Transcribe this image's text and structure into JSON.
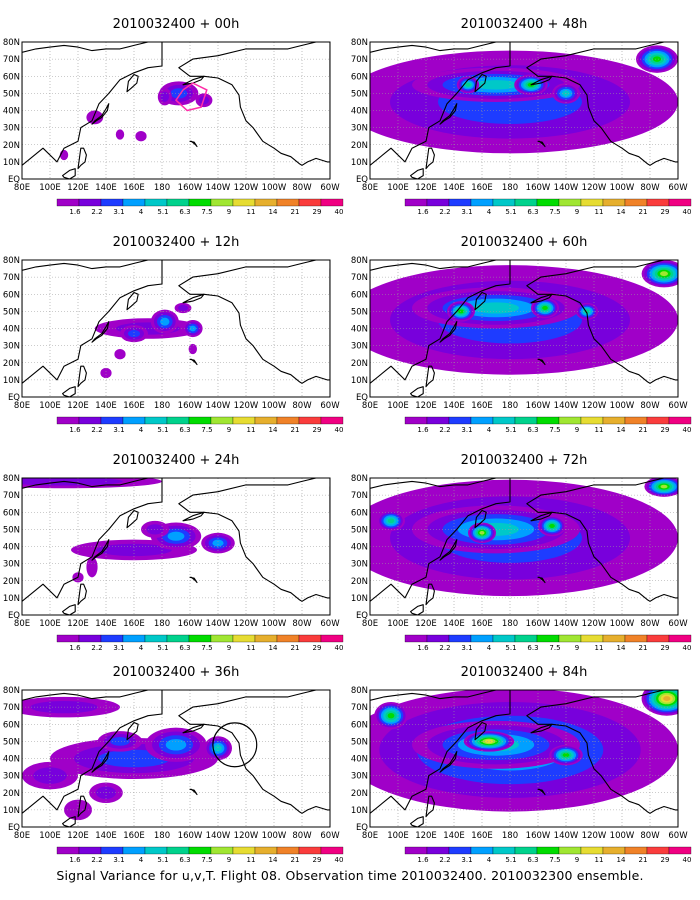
{
  "figure": {
    "footer": "Signal Variance for u,v,T. Flight 08. Observation time 2010032400. 2010032300 ensemble."
  },
  "x_axis_labels": [
    "80E",
    "100E",
    "120E",
    "140E",
    "160E",
    "180",
    "160W",
    "140W",
    "120W",
    "100W",
    "80W",
    "60W"
  ],
  "y_axis_labels": [
    "EQ",
    "10N",
    "20N",
    "30N",
    "40N",
    "50N",
    "60N",
    "70N",
    "80N"
  ],
  "colorbar": {
    "labels": [
      "1.6",
      "2.2",
      "3.1",
      "4",
      "5.1",
      "6.3",
      "7.5",
      "9",
      "11",
      "14",
      "21",
      "29",
      "40"
    ],
    "colors": [
      "#a000c8",
      "#7800dc",
      "#1e3cff",
      "#00a0ff",
      "#00c8c8",
      "#00d28c",
      "#00dc00",
      "#a0e632",
      "#e6dc32",
      "#e6af2d",
      "#f08228",
      "#fa3c3c",
      "#f00082"
    ]
  },
  "map_colors": {
    "land_outline": "#000000",
    "grid": "#9a9a9a",
    "frame": "#000000"
  },
  "panels": [
    {
      "id": "p00",
      "title": "2010032400 + 00h",
      "col": 0,
      "row": 0,
      "marker": {
        "type": "polygon",
        "color": "#ff2ea8",
        "lon": [
          -165,
          -170,
          -162,
          -152,
          -148,
          -158,
          -165
        ],
        "lat": [
          52,
          46,
          40,
          42,
          52,
          56,
          52
        ]
      },
      "blobs": [
        {
          "lon": -168,
          "lat": 50,
          "rx": 14,
          "ry": 7,
          "v": 0.22
        },
        {
          "lon": -150,
          "lat": 46,
          "rx": 6,
          "ry": 4,
          "v": 0.18
        },
        {
          "lon": -178,
          "lat": 48,
          "rx": 5,
          "ry": 5,
          "v": 0.12
        },
        {
          "lon": 132,
          "lat": 36,
          "rx": 6,
          "ry": 4,
          "v": 0.1
        },
        {
          "lon": 150,
          "lat": 26,
          "rx": 3,
          "ry": 3,
          "v": 0.08
        },
        {
          "lon": 110,
          "lat": 14,
          "rx": 3,
          "ry": 3,
          "v": 0.08
        },
        {
          "lon": 165,
          "lat": 25,
          "rx": 4,
          "ry": 3,
          "v": 0.08
        }
      ]
    },
    {
      "id": "p12",
      "title": "2010032400 + 12h",
      "col": 0,
      "row": 1,
      "blobs": [
        {
          "lon": 170,
          "lat": 40,
          "rx": 38,
          "ry": 6,
          "v": 0.18
        },
        {
          "lon": -178,
          "lat": 44,
          "rx": 10,
          "ry": 7,
          "v": 0.3
        },
        {
          "lon": -158,
          "lat": 40,
          "rx": 7,
          "ry": 5,
          "v": 0.3
        },
        {
          "lon": 160,
          "lat": 37,
          "rx": 10,
          "ry": 5,
          "v": 0.22
        },
        {
          "lon": -165,
          "lat": 52,
          "rx": 6,
          "ry": 3,
          "v": 0.12
        },
        {
          "lon": 150,
          "lat": 25,
          "rx": 4,
          "ry": 3,
          "v": 0.1
        },
        {
          "lon": 140,
          "lat": 14,
          "rx": 4,
          "ry": 3,
          "v": 0.1
        },
        {
          "lon": -158,
          "lat": 28,
          "rx": 3,
          "ry": 3,
          "v": 0.08
        }
      ]
    },
    {
      "id": "p24",
      "title": "2010032400 + 24h",
      "col": 0,
      "row": 2,
      "blobs": [
        {
          "lon": 160,
          "lat": 38,
          "rx": 45,
          "ry": 6,
          "v": 0.18
        },
        {
          "lon": -170,
          "lat": 46,
          "rx": 18,
          "ry": 8,
          "v": 0.3
        },
        {
          "lon": -140,
          "lat": 42,
          "rx": 12,
          "ry": 6,
          "v": 0.3
        },
        {
          "lon": 175,
          "lat": 50,
          "rx": 10,
          "ry": 5,
          "v": 0.18
        },
        {
          "lon": 110,
          "lat": 78,
          "rx": 70,
          "ry": 4,
          "v": 0.12
        },
        {
          "lon": 130,
          "lat": 28,
          "rx": 4,
          "ry": 6,
          "v": 0.1
        },
        {
          "lon": 120,
          "lat": 22,
          "rx": 4,
          "ry": 3,
          "v": 0.1
        }
      ]
    },
    {
      "id": "p36",
      "title": "2010032400 + 36h",
      "col": 0,
      "row": 3,
      "marker": {
        "type": "circle",
        "color": "#000000",
        "lon": -128,
        "lat": 48,
        "r": 8
      },
      "blobs": [
        {
          "lon": 160,
          "lat": 40,
          "rx": 60,
          "ry": 12,
          "v": 0.2
        },
        {
          "lon": -170,
          "lat": 48,
          "rx": 22,
          "ry": 10,
          "v": 0.32
        },
        {
          "lon": -140,
          "lat": 46,
          "rx": 10,
          "ry": 7,
          "v": 0.36
        },
        {
          "lon": 150,
          "lat": 50,
          "rx": 16,
          "ry": 6,
          "v": 0.24
        },
        {
          "lon": 110,
          "lat": 70,
          "rx": 40,
          "ry": 6,
          "v": 0.15
        },
        {
          "lon": 100,
          "lat": 30,
          "rx": 20,
          "ry": 8,
          "v": 0.12
        },
        {
          "lon": 140,
          "lat": 20,
          "rx": 12,
          "ry": 6,
          "v": 0.12
        },
        {
          "lon": 120,
          "lat": 10,
          "rx": 10,
          "ry": 6,
          "v": 0.1
        }
      ]
    },
    {
      "id": "p48",
      "title": "2010032400 + 48h",
      "col": 1,
      "row": 0,
      "blobs": [
        {
          "lon": -180,
          "lat": 45,
          "rx": 120,
          "ry": 30,
          "v": 0.2
        },
        {
          "lon": 170,
          "lat": 55,
          "rx": 60,
          "ry": 10,
          "v": 0.35
        },
        {
          "lon": -165,
          "lat": 55,
          "rx": 12,
          "ry": 6,
          "v": 0.5
        },
        {
          "lon": 150,
          "lat": 55,
          "rx": 8,
          "ry": 5,
          "v": 0.45
        },
        {
          "lon": -140,
          "lat": 50,
          "rx": 10,
          "ry": 6,
          "v": 0.4
        },
        {
          "lon": -75,
          "lat": 70,
          "rx": 15,
          "ry": 8,
          "v": 0.55
        }
      ]
    },
    {
      "id": "p60",
      "title": "2010032400 + 60h",
      "col": 1,
      "row": 1,
      "blobs": [
        {
          "lon": -180,
          "lat": 45,
          "rx": 120,
          "ry": 32,
          "v": 0.22
        },
        {
          "lon": 170,
          "lat": 52,
          "rx": 60,
          "ry": 12,
          "v": 0.35
        },
        {
          "lon": -155,
          "lat": 52,
          "rx": 10,
          "ry": 6,
          "v": 0.55
        },
        {
          "lon": 145,
          "lat": 50,
          "rx": 10,
          "ry": 6,
          "v": 0.55
        },
        {
          "lon": -125,
          "lat": 50,
          "rx": 8,
          "ry": 5,
          "v": 0.45
        },
        {
          "lon": -70,
          "lat": 72,
          "rx": 16,
          "ry": 8,
          "v": 0.6
        }
      ]
    },
    {
      "id": "p72",
      "title": "2010032400 + 72h",
      "col": 1,
      "row": 2,
      "blobs": [
        {
          "lon": -180,
          "lat": 45,
          "rx": 120,
          "ry": 34,
          "v": 0.25
        },
        {
          "lon": 170,
          "lat": 50,
          "rx": 60,
          "ry": 14,
          "v": 0.38
        },
        {
          "lon": 160,
          "lat": 48,
          "rx": 10,
          "ry": 6,
          "v": 0.65
        },
        {
          "lon": -150,
          "lat": 52,
          "rx": 10,
          "ry": 6,
          "v": 0.55
        },
        {
          "lon": 95,
          "lat": 55,
          "rx": 10,
          "ry": 6,
          "v": 0.45
        },
        {
          "lon": -70,
          "lat": 75,
          "rx": 14,
          "ry": 6,
          "v": 0.65
        }
      ]
    },
    {
      "id": "p84",
      "title": "2010032400 + 84h",
      "col": 1,
      "row": 3,
      "blobs": [
        {
          "lon": -180,
          "lat": 45,
          "rx": 120,
          "ry": 36,
          "v": 0.28
        },
        {
          "lon": 170,
          "lat": 48,
          "rx": 60,
          "ry": 14,
          "v": 0.42
        },
        {
          "lon": 165,
          "lat": 50,
          "rx": 18,
          "ry": 6,
          "v": 0.7
        },
        {
          "lon": 95,
          "lat": 65,
          "rx": 12,
          "ry": 8,
          "v": 0.5
        },
        {
          "lon": -140,
          "lat": 42,
          "rx": 12,
          "ry": 6,
          "v": 0.55
        },
        {
          "lon": -68,
          "lat": 75,
          "rx": 18,
          "ry": 10,
          "v": 0.75
        }
      ]
    }
  ],
  "land": [
    {
      "name": "Asia mainland",
      "lon": [
        80,
        95,
        105,
        110,
        120,
        122,
        130,
        135,
        142,
        150,
        160,
        170,
        180,
        180,
        170,
        160,
        150,
        140,
        130,
        120,
        110,
        100,
        90,
        80
      ],
      "lat": [
        8,
        18,
        10,
        18,
        22,
        30,
        34,
        44,
        50,
        58,
        62,
        65,
        66,
        80,
        80,
        78,
        76,
        76,
        75,
        77,
        78,
        77,
        76,
        74
      ]
    },
    {
      "name": "Japan",
      "lon": [
        130,
        133,
        137,
        141,
        142,
        140,
        137,
        132,
        130
      ],
      "lat": [
        32,
        34,
        36,
        40,
        44,
        41,
        37,
        34,
        32
      ]
    },
    {
      "name": "Kamchatka",
      "lon": [
        155,
        158,
        162,
        163,
        160,
        156,
        155
      ],
      "lat": [
        51,
        53,
        56,
        60,
        61,
        57,
        51
      ]
    },
    {
      "name": "North America",
      "lon": [
        -168,
        -160,
        -150,
        -140,
        -130,
        -125,
        -124,
        -120,
        -115,
        -108,
        -100,
        -95,
        -88,
        -82,
        -80,
        -76,
        -70,
        -62,
        -60,
        -60,
        -70,
        -80,
        -90,
        -100,
        -120,
        -140,
        -158,
        -168
      ],
      "lat": [
        65,
        60,
        60,
        59,
        55,
        49,
        42,
        34,
        30,
        22,
        18,
        15,
        13,
        9,
        8,
        10,
        12,
        10,
        10,
        80,
        80,
        78,
        76,
        76,
        76,
        72,
        70,
        65
      ]
    },
    {
      "name": "Alaska peninsula",
      "lon": [
        -165,
        -158,
        -152,
        -150,
        -158,
        -165
      ],
      "lat": [
        55,
        56,
        58,
        60,
        58,
        55
      ]
    },
    {
      "name": "Philippines",
      "lon": [
        120,
        122,
        125,
        126,
        124,
        122,
        120
      ],
      "lat": [
        6,
        8,
        10,
        14,
        18,
        18,
        6
      ]
    },
    {
      "name": "Borneo",
      "lon": [
        109,
        114,
        118,
        118,
        114,
        110,
        109
      ],
      "lat": [
        2,
        5,
        6,
        2,
        0,
        1,
        2
      ]
    },
    {
      "name": "Greenland",
      "lon": [
        -60,
        -50,
        -40,
        -45,
        -55,
        -60
      ],
      "lat": [
        60,
        62,
        70,
        80,
        80,
        75
      ]
    },
    {
      "name": "Hawaii",
      "lon": [
        -160,
        -157,
        -155,
        -156,
        -159,
        -160
      ],
      "lat": [
        22,
        21.5,
        19,
        20,
        22,
        22
      ]
    }
  ]
}
